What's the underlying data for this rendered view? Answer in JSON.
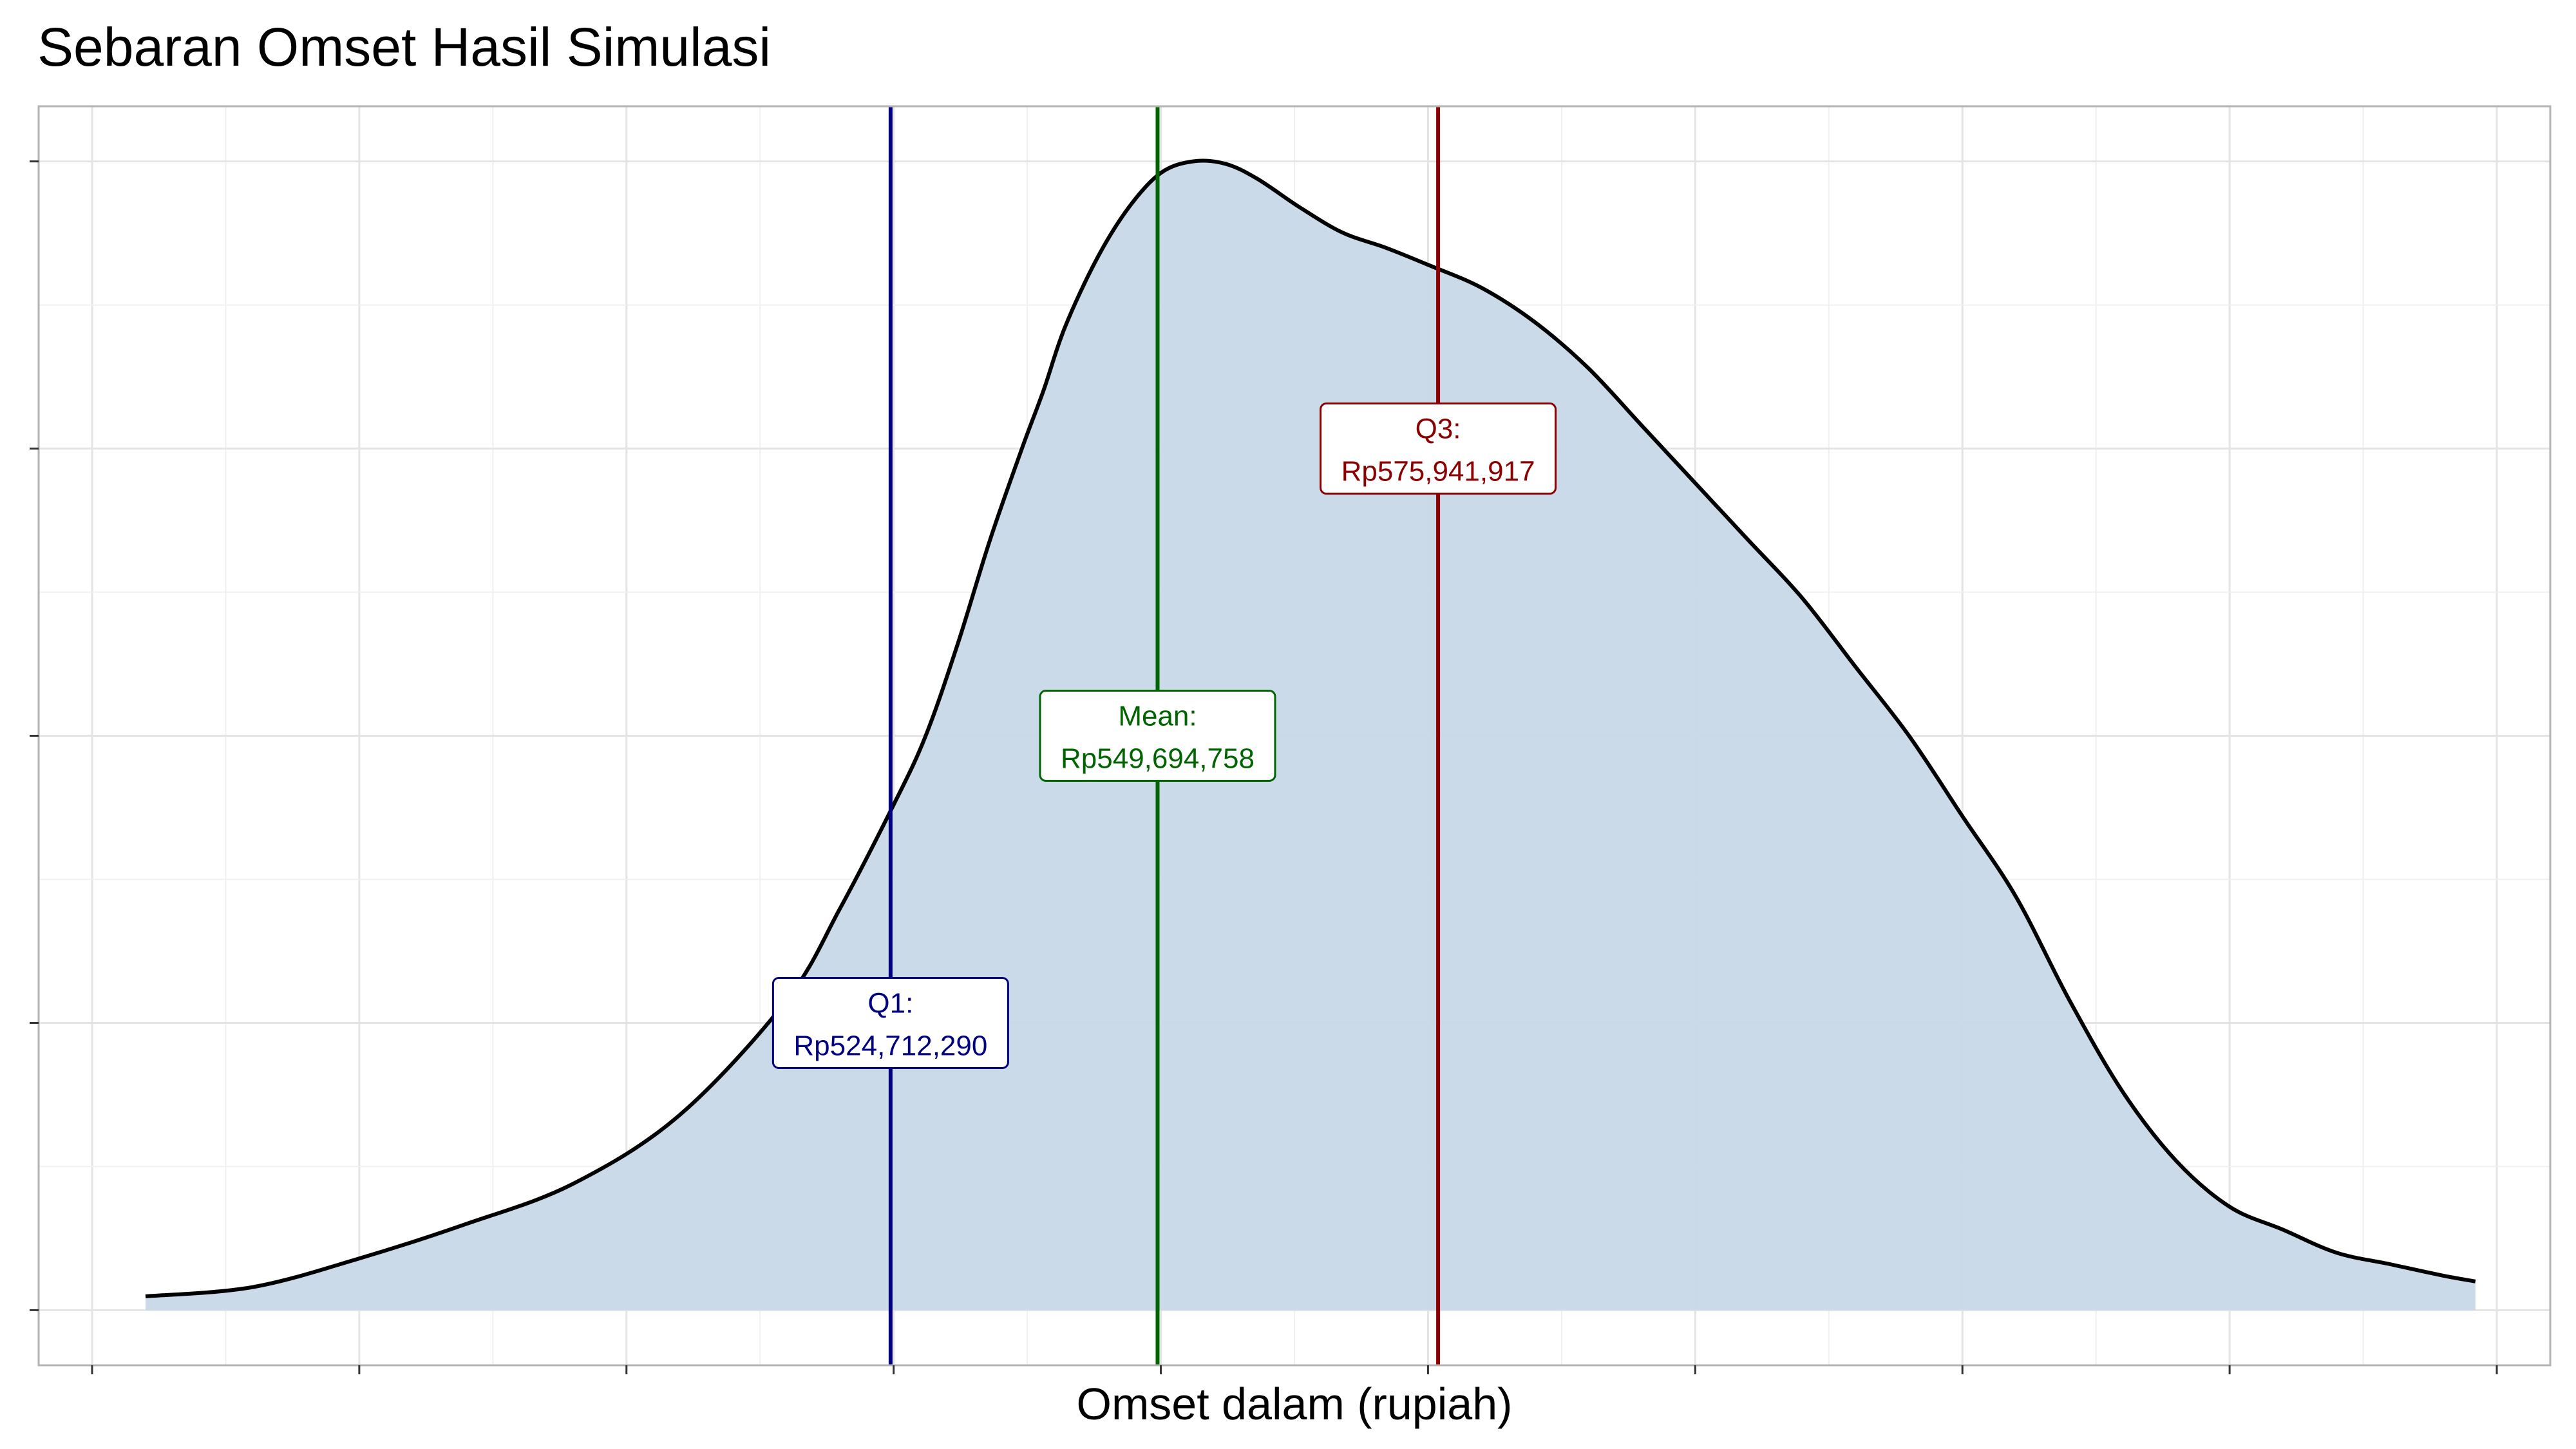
{
  "chart_data": {
    "type": "area",
    "title": "Sebaran Omset Hasil Simulasi",
    "xlabel": "Omset dalam (rupiah)",
    "ylabel": "",
    "xlim": [
      445000000,
      680000000
    ],
    "ylim": [
      -0.048,
      1.048
    ],
    "grid": true,
    "legend": "none",
    "fill_color": "#C7D8E8",
    "line_color": "#000000",
    "series": [
      {
        "x": [
          455000000,
          465000000,
          475000000,
          485000000,
          495000000,
          505000000,
          515000000,
          520000000,
          525000000,
          528000000,
          531000000,
          534000000,
          537000000,
          539000000,
          541000000,
          544000000,
          547000000,
          550000000,
          553000000,
          556000000,
          559000000,
          563000000,
          567000000,
          571000000,
          575000000,
          580000000,
          585000000,
          590000000,
          595000000,
          600000000,
          605000000,
          610000000,
          615000000,
          620000000,
          625000000,
          630000000,
          635000000,
          640000000,
          645000000,
          650000000,
          655000000,
          660000000,
          665000000,
          670000000,
          673000000
        ],
        "y": [
          0.012,
          0.02,
          0.045,
          0.075,
          0.11,
          0.17,
          0.27,
          0.35,
          0.44,
          0.5,
          0.58,
          0.67,
          0.75,
          0.8,
          0.855,
          0.915,
          0.96,
          0.99,
          1.0,
          0.998,
          0.985,
          0.96,
          0.938,
          0.925,
          0.91,
          0.89,
          0.86,
          0.82,
          0.77,
          0.72,
          0.67,
          0.62,
          0.56,
          0.5,
          0.43,
          0.36,
          0.27,
          0.19,
          0.13,
          0.09,
          0.07,
          0.05,
          0.04,
          0.03,
          0.025
        ]
      }
    ],
    "vlines": [
      {
        "name": "Q1",
        "x": 524712290,
        "color": "#000080",
        "label_line1": "Q1:",
        "label_line2": "Rp524,712,290",
        "label_y": 0.25
      },
      {
        "name": "Mean",
        "x": 549694758,
        "color": "#006400",
        "label_line1": "Mean:",
        "label_line2": "Rp549,694,758",
        "label_y": 0.5
      },
      {
        "name": "Q3",
        "x": 575941917,
        "color": "#8B0000",
        "label_line1": "Q3:",
        "label_line2": "Rp575,941,917",
        "label_y": 0.75
      }
    ]
  }
}
